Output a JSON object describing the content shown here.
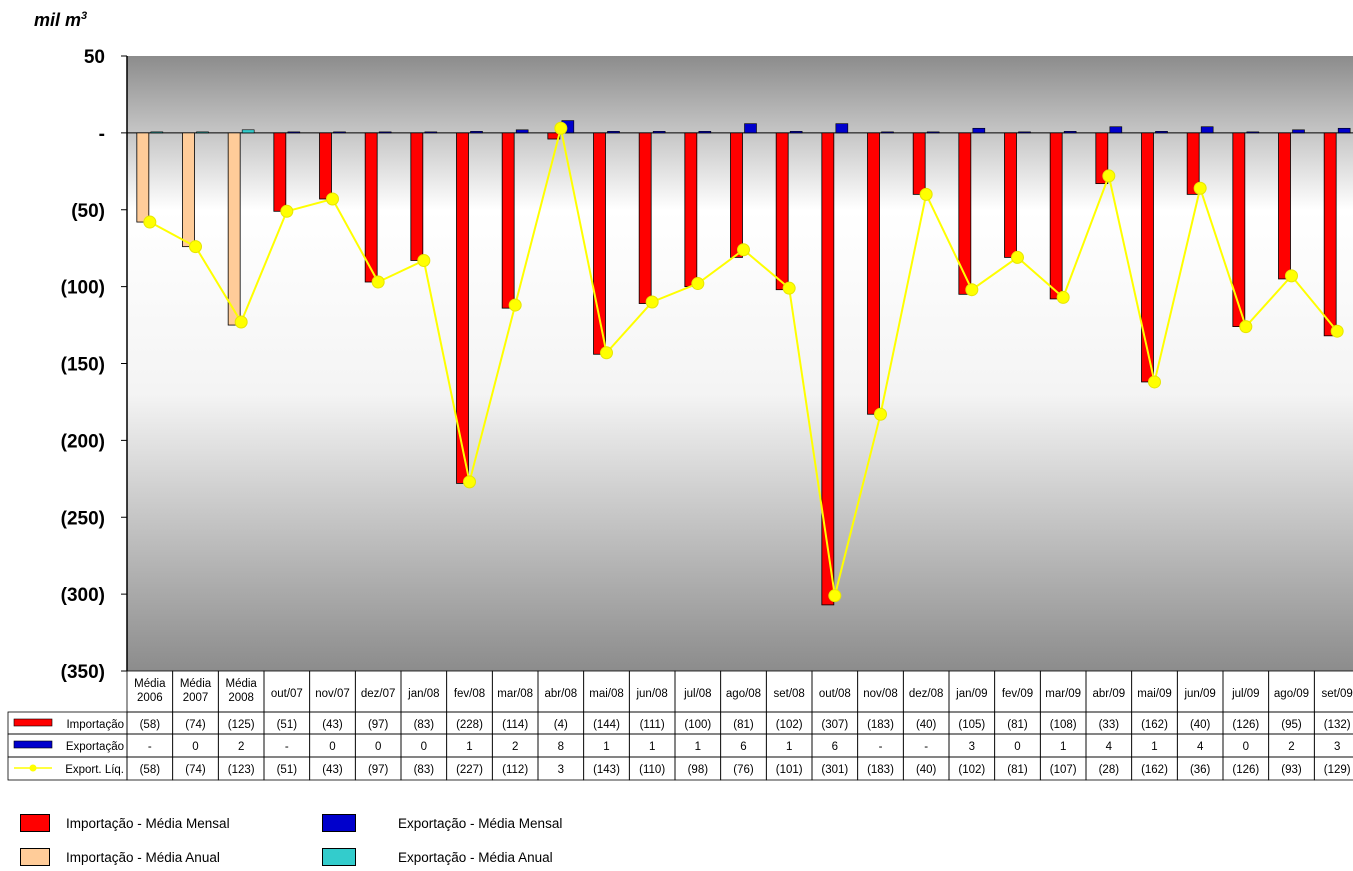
{
  "chart_data": {
    "type": "bar",
    "unit_label": "mil m",
    "unit_sup": "3",
    "y_ticks": [
      "50",
      "-",
      "(50)",
      "(100)",
      "(150)",
      "(200)",
      "(250)",
      "(300)",
      "(350)"
    ],
    "ylim": [
      -350,
      50
    ],
    "categories": [
      [
        "Média",
        "2006"
      ],
      [
        "Média",
        "2007"
      ],
      [
        "Média",
        "2008"
      ],
      [
        "out/07"
      ],
      [
        "nov/07"
      ],
      [
        "dez/07"
      ],
      [
        "jan/08"
      ],
      [
        "fev/08"
      ],
      [
        "mar/08"
      ],
      [
        "abr/08"
      ],
      [
        "mai/08"
      ],
      [
        "jun/08"
      ],
      [
        "jul/08"
      ],
      [
        "ago/08"
      ],
      [
        "set/08"
      ],
      [
        "out/08"
      ],
      [
        "nov/08"
      ],
      [
        "dez/08"
      ],
      [
        "jan/09"
      ],
      [
        "fev/09"
      ],
      [
        "mar/09"
      ],
      [
        "abr/09"
      ],
      [
        "mai/09"
      ],
      [
        "jun/09"
      ],
      [
        "jul/09"
      ],
      [
        "ago/09"
      ],
      [
        "set/09"
      ]
    ],
    "annual_count": 3,
    "series": [
      {
        "name": "Importação",
        "values": [
          -58,
          -74,
          -125,
          -51,
          -43,
          -97,
          -83,
          -228,
          -114,
          -4,
          -144,
          -111,
          -100,
          -81,
          -102,
          -307,
          -183,
          -40,
          -105,
          -81,
          -108,
          -33,
          -162,
          -40,
          -126,
          -95,
          -132
        ],
        "labels": [
          "(58)",
          "(74)",
          "(125)",
          "(51)",
          "(43)",
          "(97)",
          "(83)",
          "(228)",
          "(114)",
          "(4)",
          "(144)",
          "(111)",
          "(100)",
          "(81)",
          "(102)",
          "(307)",
          "(183)",
          "(40)",
          "(105)",
          "(81)",
          "(108)",
          "(33)",
          "(162)",
          "(40)",
          "(126)",
          "(95)",
          "(132)"
        ]
      },
      {
        "name": "Exportação",
        "values": [
          0,
          0,
          2,
          0,
          0,
          0,
          0,
          1,
          2,
          8,
          1,
          1,
          1,
          6,
          1,
          6,
          0,
          0,
          3,
          0,
          1,
          4,
          1,
          4,
          0,
          2,
          3
        ],
        "labels": [
          "-",
          "0",
          "2",
          "-",
          "0",
          "0",
          "0",
          "1",
          "2",
          "8",
          "1",
          "1",
          "1",
          "6",
          "1",
          "6",
          "-",
          "-",
          "3",
          "0",
          "1",
          "4",
          "1",
          "4",
          "0",
          "2",
          "3"
        ]
      },
      {
        "name": "Export. Líq.",
        "values": [
          -58,
          -74,
          -123,
          -51,
          -43,
          -97,
          -83,
          -227,
          -112,
          3,
          -143,
          -110,
          -98,
          -76,
          -101,
          -301,
          -183,
          -40,
          -102,
          -81,
          -107,
          -28,
          -162,
          -36,
          -126,
          -93,
          -129
        ],
        "labels": [
          "(58)",
          "(74)",
          "(123)",
          "(51)",
          "(43)",
          "(97)",
          "(83)",
          "(227)",
          "(112)",
          "3",
          "(143)",
          "(110)",
          "(98)",
          "(76)",
          "(101)",
          "(301)",
          "(183)",
          "(40)",
          "(102)",
          "(81)",
          "(107)",
          "(28)",
          "(162)",
          "(36)",
          "(126)",
          "(93)",
          "(129)"
        ]
      }
    ],
    "colors": {
      "import_monthly": "#ff0000",
      "import_annual": "#ffcc99",
      "export_monthly": "#0000cc",
      "export_annual": "#33cccc",
      "net_line": "#ffff00",
      "plot_bg_top": "#8c8c8c",
      "plot_bg_mid": "#ffffff"
    },
    "legend": [
      {
        "label": "Importação - Média Mensal",
        "color": "#ff0000"
      },
      {
        "label": "Exportação - Média Mensal",
        "color": "#0000cc"
      },
      {
        "label": "Importação - Média Anual",
        "color": "#ffcc99"
      },
      {
        "label": "Exportação - Média Anual",
        "color": "#33cccc"
      }
    ]
  }
}
